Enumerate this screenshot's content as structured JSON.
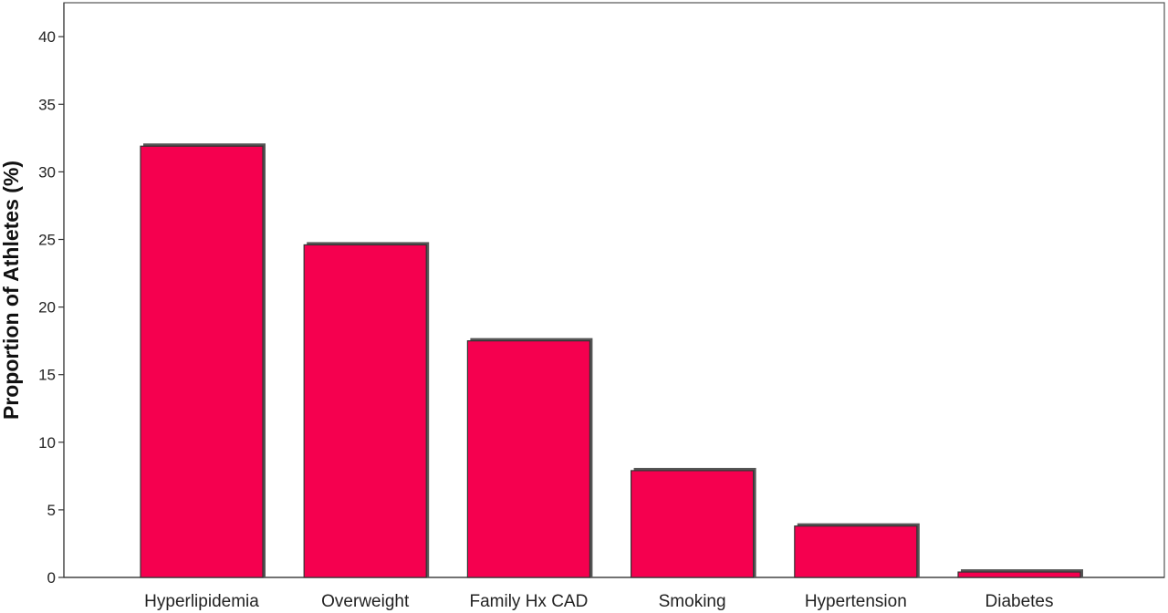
{
  "chart_data": {
    "type": "bar",
    "title": "",
    "xlabel": "",
    "ylabel": "Proportion of Athletes (%)",
    "categories": [
      "Hyperlipidemia",
      "Overweight",
      "Family Hx CAD",
      "Smoking",
      "Hypertension",
      "Diabetes"
    ],
    "values": [
      31.9,
      24.6,
      17.5,
      7.9,
      3.8,
      0.4
    ],
    "ylim": [
      0,
      43
    ],
    "yticks": [
      0,
      5,
      10,
      15,
      20,
      25,
      30,
      35,
      40
    ],
    "grid": false,
    "legend": "none",
    "bar_color": "#f5004f",
    "bar_outline_color": "#333333"
  }
}
